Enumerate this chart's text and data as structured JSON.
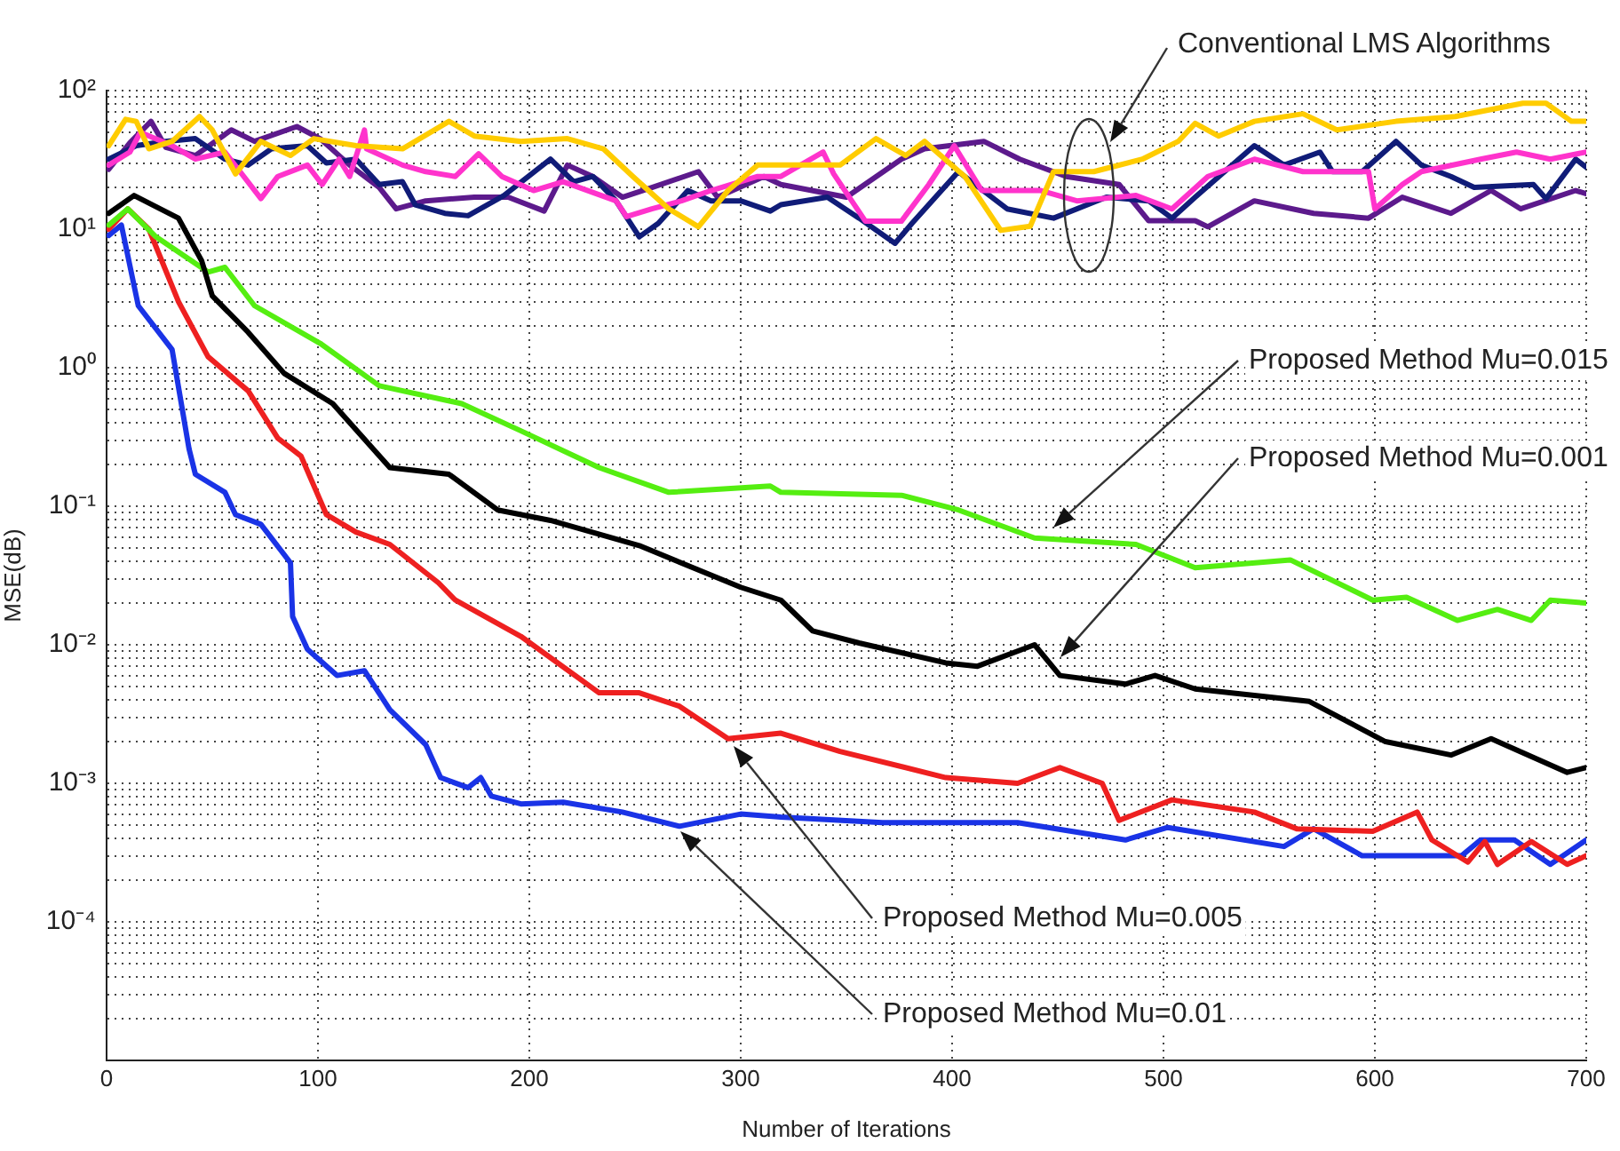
{
  "chart_data": {
    "type": "line",
    "xlabel": "Number of Iterations",
    "ylabel": "MSE(dB)",
    "log": "y",
    "grid": true,
    "legend": false,
    "marker": "none",
    "line_style": "solid",
    "xlim": [
      0,
      700
    ],
    "xticks": [
      0,
      100,
      200,
      300,
      400,
      500,
      600,
      700
    ],
    "ylim": [
      1e-05,
      100
    ],
    "yticks": [
      {
        "value": 1e-05,
        "label": null
      },
      {
        "value": 2e-05,
        "label": null
      },
      {
        "value": 3e-05,
        "label": null
      },
      {
        "value": 4e-05,
        "label": null
      },
      {
        "value": 5e-05,
        "label": null
      },
      {
        "value": 6e-05,
        "label": null
      },
      {
        "value": 7e-05,
        "label": null
      },
      {
        "value": 8e-05,
        "label": null
      },
      {
        "value": 9e-05,
        "label": null
      },
      {
        "value": 0.0001,
        "label": "10⁻⁴"
      },
      {
        "value": 0.0002,
        "label": null
      },
      {
        "value": 0.0003,
        "label": null
      },
      {
        "value": 0.0004,
        "label": null
      },
      {
        "value": 0.0005,
        "label": null
      },
      {
        "value": 0.0006,
        "label": null
      },
      {
        "value": 0.0007,
        "label": null
      },
      {
        "value": 0.0008,
        "label": null
      },
      {
        "value": 0.0009,
        "label": null
      },
      {
        "value": 0.001,
        "label": "10⁻³"
      },
      {
        "value": 0.002,
        "label": null
      },
      {
        "value": 0.003,
        "label": null
      },
      {
        "value": 0.004,
        "label": null
      },
      {
        "value": 0.005,
        "label": null
      },
      {
        "value": 0.006,
        "label": null
      },
      {
        "value": 0.007,
        "label": null
      },
      {
        "value": 0.008,
        "label": null
      },
      {
        "value": 0.009,
        "label": null
      },
      {
        "value": 0.01,
        "label": "10⁻²"
      },
      {
        "value": 0.02,
        "label": null
      },
      {
        "value": 0.03,
        "label": null
      },
      {
        "value": 0.04,
        "label": null
      },
      {
        "value": 0.05,
        "label": null
      },
      {
        "value": 0.06,
        "label": null
      },
      {
        "value": 0.07,
        "label": null
      },
      {
        "value": 0.08,
        "label": null
      },
      {
        "value": 0.09,
        "label": null
      },
      {
        "value": 0.1,
        "label": "10⁻¹"
      },
      {
        "value": 0.2,
        "label": null
      },
      {
        "value": 0.3,
        "label": null
      },
      {
        "value": 0.4,
        "label": null
      },
      {
        "value": 0.5,
        "label": null
      },
      {
        "value": 0.6,
        "label": null
      },
      {
        "value": 0.7,
        "label": null
      },
      {
        "value": 0.8,
        "label": null
      },
      {
        "value": 0.9,
        "label": null
      },
      {
        "value": 1,
        "label": "10⁰"
      },
      {
        "value": 2,
        "label": null
      },
      {
        "value": 3,
        "label": null
      },
      {
        "value": 4,
        "label": null
      },
      {
        "value": 5,
        "label": null
      },
      {
        "value": 6,
        "label": null
      },
      {
        "value": 7,
        "label": null
      },
      {
        "value": 8,
        "label": null
      },
      {
        "value": 9,
        "label": null
      },
      {
        "value": 10,
        "label": "10¹"
      },
      {
        "value": 20,
        "label": null
      },
      {
        "value": 30,
        "label": null
      },
      {
        "value": 40,
        "label": null
      },
      {
        "value": 50,
        "label": null
      },
      {
        "value": 60,
        "label": null
      },
      {
        "value": 70,
        "label": null
      },
      {
        "value": 80,
        "label": null
      },
      {
        "value": 90,
        "label": null
      },
      {
        "value": 100,
        "label": "10²"
      }
    ],
    "series": [
      {
        "color": "#ffcc00",
        "x": [
          1,
          9,
          14,
          20,
          31,
          44,
          50,
          61,
          73,
          87,
          98,
          118,
          140,
          162,
          174,
          196,
          218,
          235,
          249,
          266,
          280,
          294,
          308,
          319,
          347,
          364,
          378,
          387,
          406,
          423,
          437,
          448,
          467,
          490,
          507,
          515,
          526,
          543,
          566,
          582,
          610,
          638,
          670,
          681,
          693,
          700
        ],
        "values": [
          40,
          62,
          60,
          38,
          43,
          65,
          52,
          25,
          43,
          34,
          45,
          40,
          38,
          60,
          47,
          43,
          45,
          38,
          24,
          14,
          10.4,
          19,
          29,
          29,
          29,
          45,
          34,
          43,
          24,
          9.8,
          10.5,
          26,
          26,
          32,
          43,
          58,
          47,
          60,
          68,
          52,
          60,
          65,
          81,
          81,
          60,
          60
        ]
      },
      {
        "color": "#ff33cc",
        "x": [
          1,
          11,
          16,
          31,
          42,
          56,
          73,
          81,
          95,
          102,
          110,
          115,
          122,
          123,
          140,
          151,
          165,
          176,
          187,
          202,
          216,
          241,
          246,
          258,
          272,
          286,
          308,
          319,
          339,
          344,
          359,
          376,
          389,
          401,
          414,
          442,
          459,
          487,
          504,
          521,
          543,
          566,
          597,
          600,
          613,
          622,
          650,
          667,
          683,
          700
        ],
        "values": [
          29,
          36,
          50,
          40,
          32,
          36,
          16.6,
          24,
          29,
          21,
          32,
          24,
          52,
          38,
          29,
          26,
          24,
          35,
          24,
          19,
          22,
          16,
          12.3,
          14,
          16,
          19,
          24,
          24,
          36,
          25,
          11.4,
          11.4,
          21,
          40,
          19,
          19,
          16,
          17.5,
          14,
          24,
          32,
          26,
          26,
          14,
          21,
          26,
          32,
          36,
          32,
          36
        ]
      },
      {
        "color": "#101c78",
        "x": [
          1,
          14,
          28,
          42,
          56,
          67,
          78,
          95,
          104,
          118,
          129,
          140,
          146,
          160,
          171,
          188,
          210,
          221,
          230,
          241,
          252,
          261,
          275,
          286,
          300,
          314,
          319,
          341,
          356,
          373,
          381,
          403,
          426,
          448,
          473,
          493,
          504,
          515,
          543,
          557,
          574,
          580,
          594,
          610,
          622,
          636,
          647,
          675,
          681,
          695,
          700
        ],
        "values": [
          32,
          40,
          43,
          45,
          32,
          29,
          38,
          40,
          30,
          32,
          21,
          22,
          15,
          13,
          12.5,
          17.5,
          32,
          22,
          24,
          16,
          8.8,
          11,
          19,
          16,
          16,
          13.5,
          15,
          17,
          12,
          7.9,
          11,
          26,
          14,
          12,
          17,
          16,
          12,
          17,
          40,
          29,
          36,
          26,
          26,
          43,
          29,
          24,
          20,
          21,
          16.6,
          32,
          28
        ]
      },
      {
        "color": "#5c1a8c",
        "x": [
          1,
          11,
          21,
          28,
          42,
          59,
          70,
          90,
          101,
          115,
          129,
          137,
          151,
          174,
          190,
          207,
          218,
          230,
          244,
          258,
          280,
          289,
          311,
          319,
          350,
          376,
          387,
          415,
          432,
          454,
          479,
          493,
          515,
          521,
          543,
          571,
          597,
          613,
          636,
          655,
          669,
          695,
          700
        ],
        "values": [
          27,
          42,
          60,
          39,
          34,
          52,
          43,
          55,
          45,
          29,
          20,
          14,
          16,
          17,
          17,
          13.5,
          29,
          24,
          17,
          20,
          26,
          17,
          24,
          21,
          17,
          32,
          38,
          43,
          32,
          24,
          21,
          11.5,
          11.5,
          10.4,
          16,
          13,
          12,
          17,
          13,
          19,
          14,
          19,
          18
        ]
      },
      {
        "color": "#000000",
        "x": [
          1,
          13,
          34,
          45,
          50,
          67,
          84,
          107,
          134,
          162,
          185,
          210,
          252,
          300,
          319,
          334,
          356,
          397,
          412,
          439,
          451,
          482,
          496,
          515,
          569,
          605,
          636,
          655,
          691,
          700
        ],
        "values": [
          13,
          17.5,
          12,
          5.9,
          3.3,
          1.8,
          0.91,
          0.55,
          0.19,
          0.17,
          0.094,
          0.079,
          0.052,
          0.026,
          0.021,
          0.0126,
          0.0103,
          0.0074,
          0.007,
          0.01,
          0.006,
          0.0052,
          0.006,
          0.0048,
          0.0039,
          0.002,
          0.0016,
          0.0021,
          0.0012,
          0.0013
        ]
      },
      {
        "color": "#55ee11",
        "x": [
          1,
          10,
          23,
          48,
          56,
          70,
          101,
          129,
          168,
          196,
          233,
          266,
          314,
          319,
          376,
          403,
          439,
          487,
          515,
          560,
          599,
          615,
          639,
          658,
          674,
          683,
          700
        ],
        "values": [
          10.7,
          14,
          8.9,
          4.9,
          5.3,
          2.8,
          1.5,
          0.74,
          0.55,
          0.35,
          0.19,
          0.126,
          0.14,
          0.126,
          0.12,
          0.094,
          0.059,
          0.053,
          0.036,
          0.041,
          0.021,
          0.022,
          0.015,
          0.018,
          0.015,
          0.021,
          0.02
        ]
      },
      {
        "color": "#ee2020",
        "x": [
          1,
          10,
          20,
          34,
          48,
          67,
          81,
          92,
          104,
          118,
          134,
          157,
          165,
          196,
          233,
          252,
          271,
          294,
          319,
          347,
          397,
          431,
          451,
          471,
          479,
          504,
          543,
          563,
          599,
          620,
          627,
          644,
          652,
          658,
          674,
          691,
          700
        ],
        "values": [
          10,
          14,
          10,
          3,
          1.2,
          0.68,
          0.31,
          0.23,
          0.087,
          0.065,
          0.053,
          0.028,
          0.021,
          0.0115,
          0.0045,
          0.0045,
          0.0036,
          0.0021,
          0.0023,
          0.0017,
          0.0011,
          0.001,
          0.0013,
          0.001,
          0.00054,
          0.00076,
          0.00062,
          0.00047,
          0.00045,
          0.00062,
          0.00039,
          0.00027,
          0.00038,
          0.00026,
          0.00038,
          0.00026,
          0.0003
        ]
      },
      {
        "color": "#1a33e6",
        "x": [
          1,
          7,
          15,
          31,
          39,
          42,
          56,
          61,
          73,
          87,
          88,
          95,
          109,
          122,
          134,
          151,
          158,
          171,
          177,
          182,
          196,
          216,
          244,
          271,
          300,
          319,
          367,
          431,
          482,
          502,
          557,
          571,
          594,
          641,
          650,
          666,
          683,
          700
        ],
        "values": [
          9,
          10.7,
          2.8,
          1.35,
          0.26,
          0.17,
          0.126,
          0.087,
          0.074,
          0.039,
          0.016,
          0.0093,
          0.006,
          0.0065,
          0.0034,
          0.0019,
          0.0011,
          0.00093,
          0.0011,
          0.00081,
          0.00071,
          0.00073,
          0.00062,
          0.00049,
          0.0006,
          0.00057,
          0.00052,
          0.00052,
          0.00039,
          0.00048,
          0.00035,
          0.00047,
          0.0003,
          0.0003,
          0.00039,
          0.00039,
          0.00026,
          0.00039
        ]
      }
    ],
    "annotations": [
      "Conventional LMS Algorithms",
      "Proposed Method Mu=0.015",
      "Proposed Method Mu=0.001",
      "Proposed Method Mu=0.005",
      "Proposed Method Mu=0.01"
    ]
  }
}
